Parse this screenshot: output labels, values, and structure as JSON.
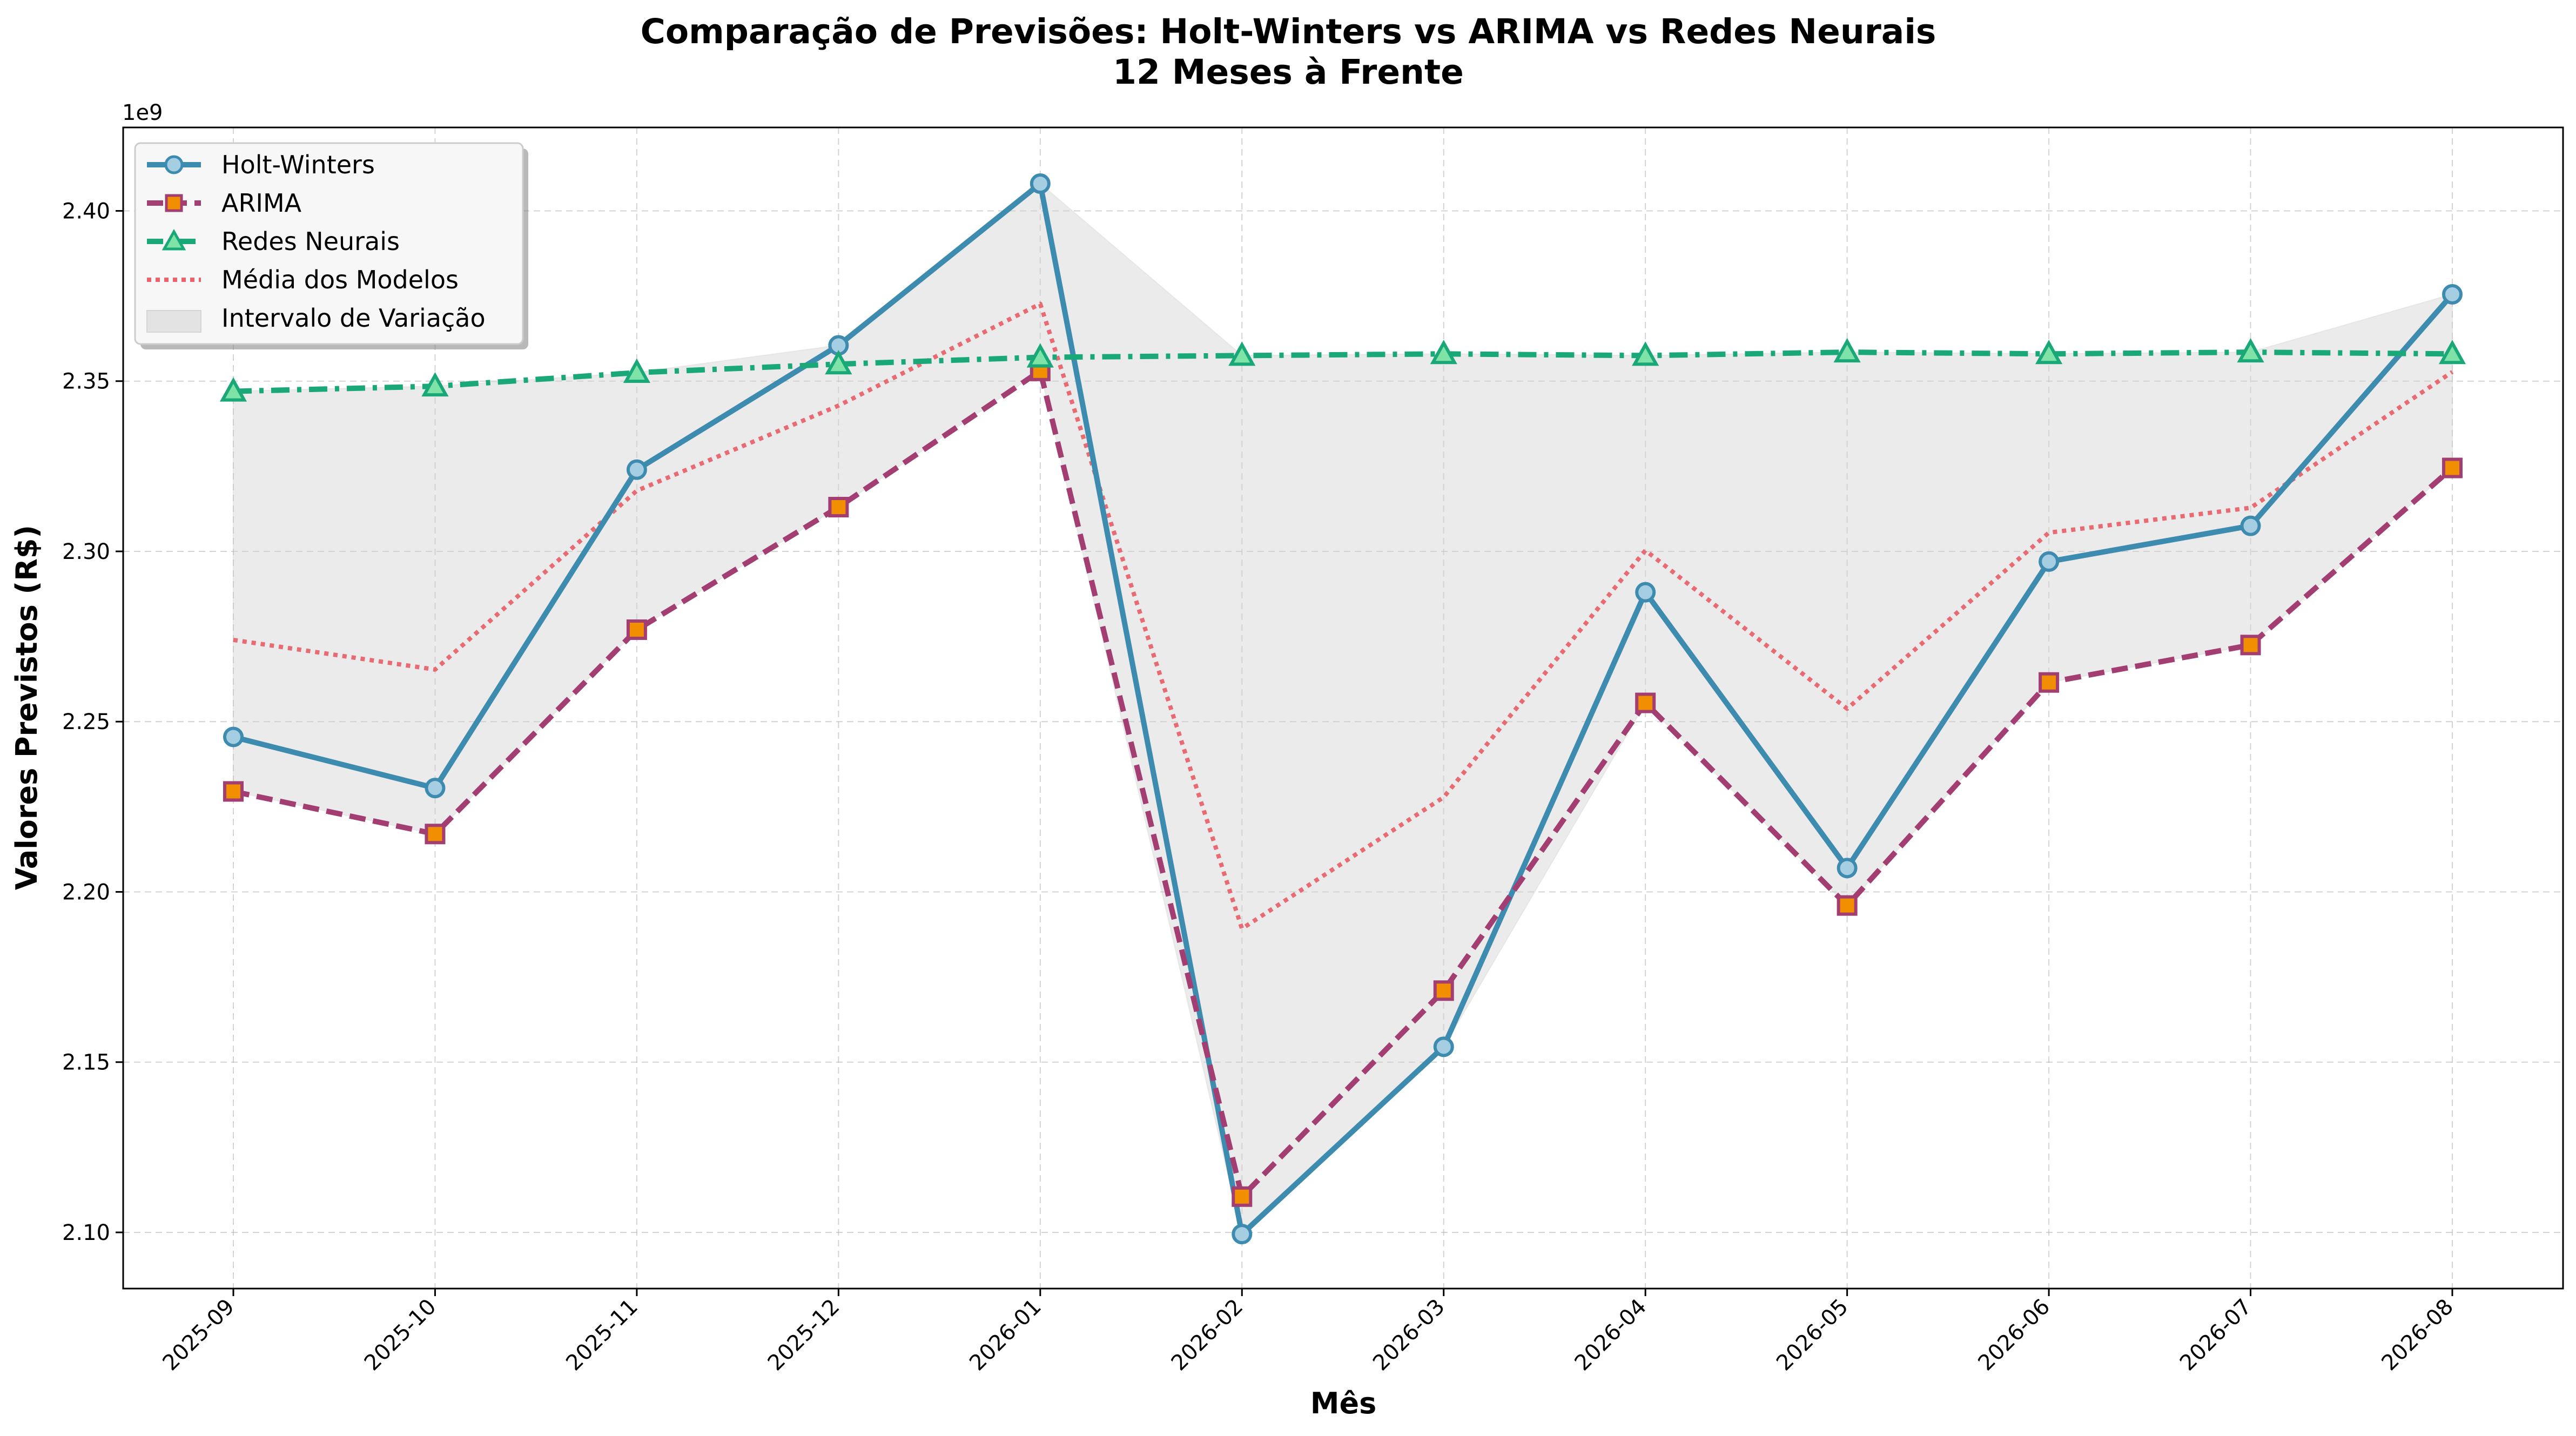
{
  "chart_data": {
    "type": "line",
    "title_line1": "Comparação de Previsões: Holt-Winters vs ARIMA vs Redes Neurais",
    "title_line2": "12 Meses à Frente",
    "xlabel": "Mês",
    "ylabel": "Valores Previstos (R$)",
    "y_offset_label": "1e9",
    "categories": [
      "2025-09",
      "2025-10",
      "2025-11",
      "2025-12",
      "2026-01",
      "2026-02",
      "2026-03",
      "2026-04",
      "2026-05",
      "2026-06",
      "2026-07",
      "2026-08"
    ],
    "y_ticks": [
      2.1,
      2.15,
      2.2,
      2.25,
      2.3,
      2.35,
      2.4
    ],
    "y_tick_labels": [
      "2.10",
      "2.15",
      "2.20",
      "2.25",
      "2.30",
      "2.35",
      "2.40"
    ],
    "ylim": [
      2.0835,
      2.4245
    ],
    "grid": true,
    "legend_position": "top-left",
    "series": [
      {
        "name": "Holt-Winters",
        "color": "#3E8BB0",
        "marker": "circle",
        "values": [
          2.2455,
          2.2305,
          2.324,
          2.3605,
          2.408,
          2.0995,
          2.1545,
          2.288,
          2.207,
          2.297,
          2.3075,
          2.3755
        ]
      },
      {
        "name": "ARIMA",
        "color": "#A23E72",
        "marker_fill": "#F18F01",
        "marker": "square",
        "values": [
          2.2295,
          2.217,
          2.277,
          2.313,
          2.353,
          2.1105,
          2.171,
          2.2555,
          2.196,
          2.2615,
          2.2725,
          2.3245
        ]
      },
      {
        "name": "Redes Neurais",
        "color": "#1AA879",
        "marker_fill": "#7FE3A8",
        "marker": "triangle",
        "values": [
          2.347,
          2.3485,
          2.3525,
          2.355,
          2.357,
          2.3575,
          2.358,
          2.3575,
          2.3585,
          2.358,
          2.3585,
          2.358
        ]
      },
      {
        "name": "Média dos Modelos",
        "color": "#E8636B",
        "marker": "none",
        "values": [
          2.274,
          2.2653,
          2.3178,
          2.3428,
          2.3727,
          2.1892,
          2.2278,
          2.3003,
          2.2538,
          2.3055,
          2.3128,
          2.3527
        ]
      }
    ],
    "band": {
      "name": "Intervalo de Variação",
      "color": "#d3d3d3",
      "description_of": "min/max"
    }
  }
}
